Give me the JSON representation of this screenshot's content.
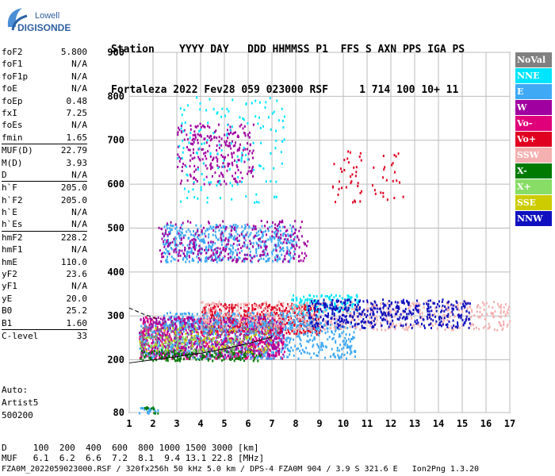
{
  "logo": {
    "line1": "Lowell",
    "line2": "DIGISONDE"
  },
  "header": {
    "line1": "Station    YYYY DAY   DDD HHMMSS P1  FFS S AXN PPS IGA PS",
    "line2": "Fortaleza 2022 Fev28 059 023000 RSF     1 714 100 10+ 11"
  },
  "params": [
    {
      "k": "foF2",
      "v": "5.800"
    },
    {
      "k": "foF1",
      "v": "N/A"
    },
    {
      "k": "foF1p",
      "v": "N/A"
    },
    {
      "k": "foE",
      "v": "N/A"
    },
    {
      "k": "foEp",
      "v": "0.48"
    },
    {
      "k": "fxI",
      "v": "7.25"
    },
    {
      "k": "foEs",
      "v": "N/A"
    },
    {
      "k": "fmin",
      "v": "1.65"
    },
    {
      "k": "MUF(D)",
      "v": "22.79",
      "sep": true
    },
    {
      "k": "M(D)",
      "v": "3.93"
    },
    {
      "k": "D",
      "v": "N/A"
    },
    {
      "k": "h`F",
      "v": "205.0",
      "sep": true
    },
    {
      "k": "h`F2",
      "v": "205.0"
    },
    {
      "k": "h`E",
      "v": "N/A"
    },
    {
      "k": "h`Es",
      "v": "N/A"
    },
    {
      "k": "hmF2",
      "v": "228.2",
      "sep": true
    },
    {
      "k": "hmF1",
      "v": "N/A"
    },
    {
      "k": "hmE",
      "v": "110.0"
    },
    {
      "k": "yF2",
      "v": "23.6"
    },
    {
      "k": "yF1",
      "v": "N/A"
    },
    {
      "k": "yE",
      "v": "20.0"
    },
    {
      "k": "B0",
      "v": "25.2"
    },
    {
      "k": "B1",
      "v": "1.60"
    },
    {
      "k": "C-level",
      "v": "33",
      "sep": true
    }
  ],
  "auto": {
    "l1": "Auto:",
    "l2": "Artist5",
    "l3": "500200"
  },
  "footer": {
    "d_row": "D     100  200  400  600  800 1000 1500 3000 [km]",
    "muf_row": "MUF   6.1  6.2  6.6  7.2  8.1  9.4 13.1 22.8 [MHz]",
    "info": "FZA0M_2022059023000.RSF / 320fx256h 50 kHz 5.0 km / DPS-4 FZA0M 904 / 3.9 S 321.6 E   Ion2Png 1.3.20"
  },
  "legend": [
    {
      "label": "NoVal",
      "color": "#808080"
    },
    {
      "label": "NNE",
      "color": "#00e5ff"
    },
    {
      "label": "E",
      "color": "#3fa9f5"
    },
    {
      "label": "W",
      "color": "#a000a0"
    },
    {
      "label": "Vo-",
      "color": "#e0007a"
    },
    {
      "label": "Vo+",
      "color": "#e00020"
    },
    {
      "label": "SSW",
      "color": "#f5b0b0"
    },
    {
      "label": "X-",
      "color": "#007a00"
    },
    {
      "label": "X+",
      "color": "#88dd66"
    },
    {
      "label": "SSE",
      "color": "#cccc00"
    },
    {
      "label": "NNW",
      "color": "#1010c0"
    }
  ],
  "chart_data": {
    "type": "scatter",
    "xlim": [
      1,
      17
    ],
    "ylim": [
      80,
      900
    ],
    "xticks": [
      1,
      2,
      3,
      4,
      5,
      6,
      7,
      8,
      9,
      10,
      11,
      12,
      13,
      14,
      15,
      16,
      17
    ],
    "yticks": [
      80,
      200,
      300,
      400,
      500,
      600,
      700,
      800,
      900
    ],
    "grid": true,
    "trace_lines": [
      {
        "name": "lower",
        "points": [
          [
            1.0,
            193
          ],
          [
            2,
            200
          ],
          [
            3,
            207
          ],
          [
            4,
            215
          ],
          [
            5,
            225
          ],
          [
            6,
            237
          ],
          [
            7,
            252
          ]
        ]
      },
      {
        "name": "upper-dashed",
        "points": [
          [
            1.0,
            318
          ],
          [
            1.6,
            304
          ],
          [
            2.2,
            293
          ]
        ]
      }
    ],
    "clusters": [
      {
        "series": "Vo-",
        "x": [
          1.4,
          7.5
        ],
        "y": [
          205,
          300
        ],
        "n": 900
      },
      {
        "series": "Vo+",
        "x": [
          4.0,
          9.0
        ],
        "y": [
          260,
          330
        ],
        "n": 500
      },
      {
        "series": "E",
        "x": [
          1.4,
          10.5
        ],
        "y": [
          205,
          290
        ],
        "n": 700
      },
      {
        "series": "E",
        "x": [
          2.4,
          8.0
        ],
        "y": [
          425,
          510
        ],
        "n": 500
      },
      {
        "series": "E",
        "x": [
          2.4,
          9.0
        ],
        "y": [
          270,
          310
        ],
        "n": 300
      },
      {
        "series": "W",
        "x": [
          1.4,
          7.5
        ],
        "y": [
          210,
          300
        ],
        "n": 400
      },
      {
        "series": "W",
        "x": [
          2.2,
          8.5
        ],
        "y": [
          425,
          520
        ],
        "n": 300
      },
      {
        "series": "W",
        "x": [
          3.0,
          6.2
        ],
        "y": [
          600,
          740
        ],
        "n": 250
      },
      {
        "series": "NNE",
        "x": [
          3.0,
          7.5
        ],
        "y": [
          560,
          800
        ],
        "n": 150
      },
      {
        "series": "NNE",
        "x": [
          7.8,
          10.6
        ],
        "y": [
          310,
          350
        ],
        "n": 150
      },
      {
        "series": "SSW",
        "x": [
          4.0,
          17.0
        ],
        "y": [
          270,
          335
        ],
        "n": 600
      },
      {
        "series": "NNW",
        "x": [
          8.5,
          15.3
        ],
        "y": [
          275,
          340
        ],
        "n": 450
      },
      {
        "series": "X-",
        "x": [
          1.4,
          6.5
        ],
        "y": [
          200,
          225
        ],
        "n": 150
      },
      {
        "series": "X+",
        "x": [
          1.4,
          6.0
        ],
        "y": [
          220,
          255
        ],
        "n": 100
      },
      {
        "series": "SSE",
        "x": [
          1.4,
          7.0
        ],
        "y": [
          220,
          280
        ],
        "n": 100
      },
      {
        "series": "NoVal",
        "x": [
          1.4,
          7.5
        ],
        "y": [
          210,
          290
        ],
        "n": 100
      },
      {
        "series": "Vo+",
        "x": [
          9.5,
          12.5
        ],
        "y": [
          560,
          680
        ],
        "n": 60
      },
      {
        "series": "E",
        "x": [
          1.4,
          2.2
        ],
        "y": [
          80,
          95
        ],
        "n": 25
      },
      {
        "series": "X-",
        "x": [
          1.6,
          2.2
        ],
        "y": [
          80,
          95
        ],
        "n": 10
      }
    ]
  }
}
